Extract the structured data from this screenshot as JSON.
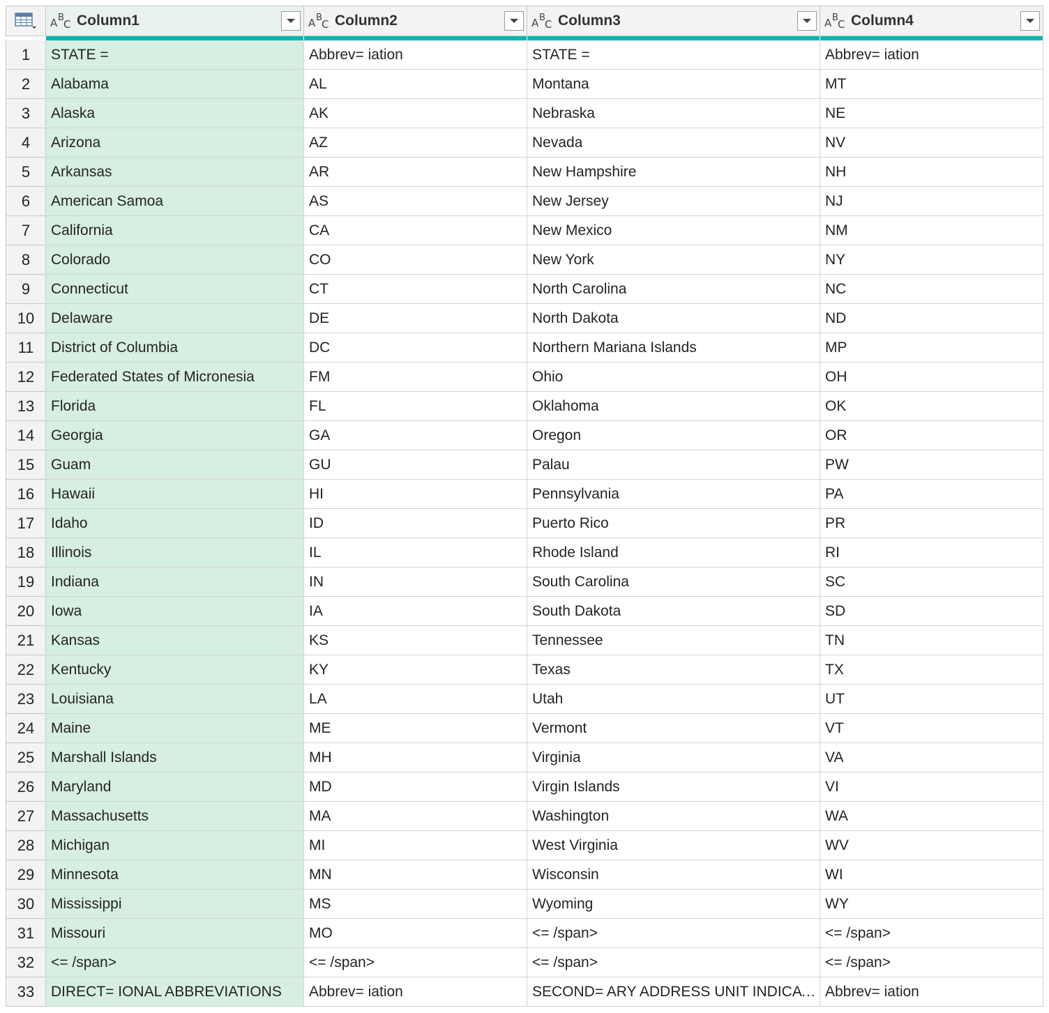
{
  "table": {
    "columns": [
      {
        "name": "Column1",
        "type_icon": "text-type-icon"
      },
      {
        "name": "Column2",
        "type_icon": "text-type-icon"
      },
      {
        "name": "Column3",
        "type_icon": "text-type-icon"
      },
      {
        "name": "Column4",
        "type_icon": "text-type-icon"
      }
    ],
    "type_label": {
      "a": "A",
      "b": "B",
      "c": "C"
    },
    "accent_color": "#01b8aa",
    "selected_column_color": "#d6efe2",
    "rows": [
      {
        "idx": "1",
        "c1": "STATE =",
        "c2": "Abbrev= iation",
        "c3": "STATE =",
        "c4": "Abbrev= iation"
      },
      {
        "idx": "2",
        "c1": "Alabama",
        "c2": "AL",
        "c3": "Montana",
        "c4": "MT"
      },
      {
        "idx": "3",
        "c1": "Alaska",
        "c2": "AK",
        "c3": "Nebraska",
        "c4": "NE"
      },
      {
        "idx": "4",
        "c1": "Arizona",
        "c2": "AZ",
        "c3": "Nevada",
        "c4": "NV"
      },
      {
        "idx": "5",
        "c1": "Arkansas",
        "c2": "AR",
        "c3": "New Hampshire",
        "c4": "NH"
      },
      {
        "idx": "6",
        "c1": "American Samoa",
        "c2": "AS",
        "c3": "New Jersey",
        "c4": "NJ"
      },
      {
        "idx": "7",
        "c1": "California",
        "c2": "CA",
        "c3": "New Mexico",
        "c4": "NM"
      },
      {
        "idx": "8",
        "c1": "Colorado",
        "c2": "CO",
        "c3": "New York",
        "c4": "NY"
      },
      {
        "idx": "9",
        "c1": "Connecticut",
        "c2": "CT",
        "c3": "North Carolina",
        "c4": "NC"
      },
      {
        "idx": "10",
        "c1": "Delaware",
        "c2": "DE",
        "c3": "North Dakota",
        "c4": "ND"
      },
      {
        "idx": "11",
        "c1": "District of Columbia",
        "c2": "DC",
        "c3": "Northern Mariana Islands",
        "c4": "MP"
      },
      {
        "idx": "12",
        "c1": "Federated States of Micronesia",
        "c2": "FM",
        "c3": "Ohio",
        "c4": "OH"
      },
      {
        "idx": "13",
        "c1": "Florida",
        "c2": "FL",
        "c3": "Oklahoma",
        "c4": "OK"
      },
      {
        "idx": "14",
        "c1": "Georgia",
        "c2": "GA",
        "c3": "Oregon",
        "c4": "OR"
      },
      {
        "idx": "15",
        "c1": "Guam",
        "c2": "GU",
        "c3": "Palau",
        "c4": "PW"
      },
      {
        "idx": "16",
        "c1": "Hawaii",
        "c2": "HI",
        "c3": "Pennsylvania",
        "c4": "PA"
      },
      {
        "idx": "17",
        "c1": "Idaho",
        "c2": "ID",
        "c3": "Puerto Rico",
        "c4": "PR"
      },
      {
        "idx": "18",
        "c1": "Illinois",
        "c2": "IL",
        "c3": "Rhode Island",
        "c4": "RI"
      },
      {
        "idx": "19",
        "c1": "Indiana",
        "c2": "IN",
        "c3": "South Carolina",
        "c4": "SC"
      },
      {
        "idx": "20",
        "c1": "Iowa",
        "c2": "IA",
        "c3": "South Dakota",
        "c4": "SD"
      },
      {
        "idx": "21",
        "c1": "Kansas",
        "c2": "KS",
        "c3": "Tennessee",
        "c4": "TN"
      },
      {
        "idx": "22",
        "c1": "Kentucky",
        "c2": "KY",
        "c3": "Texas",
        "c4": "TX"
      },
      {
        "idx": "23",
        "c1": "Louisiana",
        "c2": "LA",
        "c3": "Utah",
        "c4": "UT"
      },
      {
        "idx": "24",
        "c1": "Maine",
        "c2": "ME",
        "c3": "Vermont",
        "c4": "VT"
      },
      {
        "idx": "25",
        "c1": "Marshall Islands",
        "c2": "MH",
        "c3": "Virginia",
        "c4": "VA"
      },
      {
        "idx": "26",
        "c1": "Maryland",
        "c2": "MD",
        "c3": "Virgin Islands",
        "c4": "VI"
      },
      {
        "idx": "27",
        "c1": "Massachusetts",
        "c2": "MA",
        "c3": "Washington",
        "c4": "WA"
      },
      {
        "idx": "28",
        "c1": "Michigan",
        "c2": "MI",
        "c3": "West Virginia",
        "c4": "WV"
      },
      {
        "idx": "29",
        "c1": "Minnesota",
        "c2": "MN",
        "c3": "Wisconsin",
        "c4": "WI"
      },
      {
        "idx": "30",
        "c1": "Mississippi",
        "c2": "MS",
        "c3": "Wyoming",
        "c4": "WY"
      },
      {
        "idx": "31",
        "c1": "Missouri",
        "c2": "MO",
        "c3": "<= /span>",
        "c4": "<= /span>"
      },
      {
        "idx": "32",
        "c1": "<= /span>",
        "c2": "<= /span>",
        "c3": "<= /span>",
        "c4": "<= /span>"
      },
      {
        "idx": "33",
        "c1": "DIRECT= IONAL ABBREVIATIONS",
        "c2": "Abbrev= iation",
        "c3": "SECOND= ARY ADDRESS UNIT INDICATO…",
        "c4": "Abbrev= iation"
      }
    ]
  }
}
